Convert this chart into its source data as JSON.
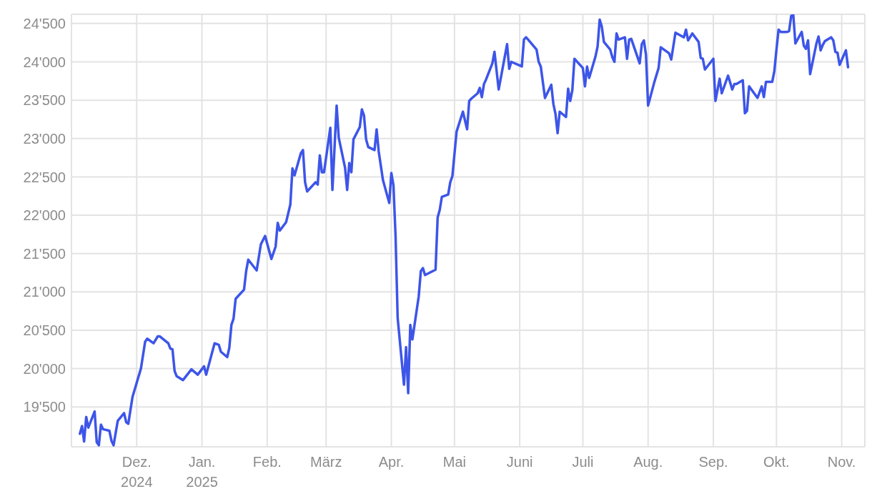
{
  "chart_data": {
    "type": "line",
    "xlim": [
      "2024-10-31",
      "2025-11-12"
    ],
    "ylim": [
      18980,
      24620
    ],
    "xticks": [
      {
        "value": "2024-12-01",
        "label": "Dez.\n2024"
      },
      {
        "value": "2025-01-01",
        "label": "Jan.\n2025"
      },
      {
        "value": "2025-02-01",
        "label": "Feb."
      },
      {
        "value": "2025-03-01",
        "label": "März"
      },
      {
        "value": "2025-04-01",
        "label": "Apr."
      },
      {
        "value": "2025-05-01",
        "label": "Mai"
      },
      {
        "value": "2025-06-01",
        "label": "Juni"
      },
      {
        "value": "2025-07-01",
        "label": "Juli"
      },
      {
        "value": "2025-08-01",
        "label": "Aug."
      },
      {
        "value": "2025-09-01",
        "label": "Sep."
      },
      {
        "value": "2025-10-01",
        "label": "Okt."
      },
      {
        "value": "2025-11-01",
        "label": "Nov."
      }
    ],
    "yticks": [
      {
        "value": 19500,
        "label": "19'500"
      },
      {
        "value": 20000,
        "label": "20'000"
      },
      {
        "value": 20500,
        "label": "20'500"
      },
      {
        "value": 21000,
        "label": "21'000"
      },
      {
        "value": 21500,
        "label": "21'500"
      },
      {
        "value": 22000,
        "label": "22'000"
      },
      {
        "value": 22500,
        "label": "22'500"
      },
      {
        "value": 23000,
        "label": "23'000"
      },
      {
        "value": 23500,
        "label": "23'500"
      },
      {
        "value": 24000,
        "label": "24'000"
      },
      {
        "value": 24500,
        "label": "24'500"
      }
    ],
    "grid": true,
    "legend": false,
    "marker": "none",
    "line_style": "solid",
    "x": [
      "2024-11-04",
      "2024-11-05",
      "2024-11-06",
      "2024-11-07",
      "2024-11-08",
      "2024-11-11",
      "2024-11-12",
      "2024-11-13",
      "2024-11-14",
      "2024-11-15",
      "2024-11-18",
      "2024-11-19",
      "2024-11-20",
      "2024-11-22",
      "2024-11-25",
      "2024-11-26",
      "2024-11-27",
      "2024-11-29",
      "2024-12-03",
      "2024-12-05",
      "2024-12-06",
      "2024-12-09",
      "2024-12-11",
      "2024-12-12",
      "2024-12-16",
      "2024-12-17",
      "2024-12-18",
      "2024-12-19",
      "2024-12-20",
      "2024-12-23",
      "2024-12-27",
      "2024-12-30",
      "2025-01-02",
      "2025-01-03",
      "2025-01-07",
      "2025-01-09",
      "2025-01-10",
      "2025-01-13",
      "2025-01-14",
      "2025-01-15",
      "2025-01-16",
      "2025-01-17",
      "2025-01-21",
      "2025-01-22",
      "2025-01-23",
      "2025-01-27",
      "2025-01-29",
      "2025-01-31",
      "2025-02-03",
      "2025-02-05",
      "2025-02-06",
      "2025-02-07",
      "2025-02-10",
      "2025-02-12",
      "2025-02-13",
      "2025-02-14",
      "2025-02-17",
      "2025-02-18",
      "2025-02-19",
      "2025-02-20",
      "2025-02-24",
      "2025-02-25",
      "2025-02-26",
      "2025-02-27",
      "2025-02-28",
      "2025-03-03",
      "2025-03-04",
      "2025-03-06",
      "2025-03-07",
      "2025-03-10",
      "2025-03-11",
      "2025-03-12",
      "2025-03-13",
      "2025-03-14",
      "2025-03-17",
      "2025-03-18",
      "2025-03-19",
      "2025-03-20",
      "2025-03-21",
      "2025-03-24",
      "2025-03-25",
      "2025-03-26",
      "2025-03-28",
      "2025-03-31",
      "2025-04-01",
      "2025-04-02",
      "2025-04-03",
      "2025-04-04",
      "2025-04-07",
      "2025-04-08",
      "2025-04-09",
      "2025-04-10",
      "2025-04-11",
      "2025-04-14",
      "2025-04-15",
      "2025-04-16",
      "2025-04-17",
      "2025-04-22",
      "2025-04-23",
      "2025-04-24",
      "2025-04-25",
      "2025-04-28",
      "2025-04-29",
      "2025-04-30",
      "2025-05-02",
      "2025-05-05",
      "2025-05-07",
      "2025-05-08",
      "2025-05-09",
      "2025-05-12",
      "2025-05-13",
      "2025-05-14",
      "2025-05-15",
      "2025-05-16",
      "2025-05-19",
      "2025-05-20",
      "2025-05-22",
      "2025-05-26",
      "2025-05-27",
      "2025-05-28",
      "2025-06-02",
      "2025-06-03",
      "2025-06-04",
      "2025-06-05",
      "2025-06-09",
      "2025-06-10",
      "2025-06-11",
      "2025-06-13",
      "2025-06-16",
      "2025-06-17",
      "2025-06-18",
      "2025-06-19",
      "2025-06-20",
      "2025-06-23",
      "2025-06-24",
      "2025-06-25",
      "2025-06-26",
      "2025-06-27",
      "2025-07-01",
      "2025-07-02",
      "2025-07-03",
      "2025-07-04",
      "2025-07-07",
      "2025-07-08",
      "2025-07-09",
      "2025-07-10",
      "2025-07-11",
      "2025-07-14",
      "2025-07-15",
      "2025-07-16",
      "2025-07-17",
      "2025-07-18",
      "2025-07-21",
      "2025-07-22",
      "2025-07-23",
      "2025-07-24",
      "2025-07-28",
      "2025-07-29",
      "2025-07-30",
      "2025-07-31",
      "2025-08-01",
      "2025-08-04",
      "2025-08-06",
      "2025-08-07",
      "2025-08-11",
      "2025-08-12",
      "2025-08-14",
      "2025-08-18",
      "2025-08-19",
      "2025-08-20",
      "2025-08-22",
      "2025-08-25",
      "2025-08-26",
      "2025-08-27",
      "2025-08-28",
      "2025-09-01",
      "2025-09-02",
      "2025-09-04",
      "2025-09-05",
      "2025-09-08",
      "2025-09-10",
      "2025-09-11",
      "2025-09-12",
      "2025-09-15",
      "2025-09-16",
      "2025-09-17",
      "2025-09-18",
      "2025-09-22",
      "2025-09-24",
      "2025-09-25",
      "2025-09-26",
      "2025-09-29",
      "2025-09-30",
      "2025-10-01",
      "2025-10-02",
      "2025-10-03",
      "2025-10-06",
      "2025-10-07",
      "2025-10-08",
      "2025-10-09",
      "2025-10-10",
      "2025-10-13",
      "2025-10-14",
      "2025-10-15",
      "2025-10-16",
      "2025-10-17",
      "2025-10-20",
      "2025-10-21",
      "2025-10-22",
      "2025-10-23",
      "2025-10-24",
      "2025-10-27",
      "2025-10-28",
      "2025-10-29",
      "2025-10-30",
      "2025-10-31",
      "2025-11-03",
      "2025-11-04"
    ],
    "series": [
      {
        "color": "#3d55e8",
        "values": [
          19150,
          19250,
          19050,
          19370,
          19230,
          19440,
          19040,
          19000,
          19270,
          19210,
          19190,
          19060,
          19000,
          19320,
          19420,
          19300,
          19280,
          19630,
          20000,
          20350,
          20390,
          20330,
          20420,
          20420,
          20330,
          20260,
          20250,
          19970,
          19900,
          19850,
          19990,
          19920,
          20030,
          19920,
          20330,
          20310,
          20220,
          20150,
          20270,
          20570,
          20650,
          20910,
          21030,
          21270,
          21420,
          21280,
          21620,
          21730,
          21430,
          21590,
          21900,
          21800,
          21910,
          22140,
          22610,
          22520,
          22810,
          22850,
          22430,
          22310,
          22430,
          22400,
          22780,
          22560,
          22560,
          23140,
          22330,
          23430,
          23010,
          22620,
          22330,
          22680,
          22560,
          22990,
          23150,
          23380,
          23300,
          22990,
          22890,
          22850,
          23120,
          22830,
          22460,
          22160,
          22550,
          22390,
          21730,
          20660,
          19790,
          20280,
          19680,
          20570,
          20380,
          20940,
          21270,
          21310,
          21220,
          21290,
          21970,
          22070,
          22240,
          22270,
          22430,
          22510,
          23090,
          23350,
          23120,
          23490,
          23520,
          23590,
          23660,
          23540,
          23710,
          23770,
          23980,
          24130,
          23640,
          24230,
          23910,
          24000,
          23940,
          24290,
          24320,
          24290,
          24160,
          24000,
          23940,
          23530,
          23700,
          23450,
          23320,
          23070,
          23350,
          23280,
          23650,
          23490,
          23630,
          24040,
          23920,
          23680,
          23940,
          23790,
          24070,
          24200,
          24550,
          24460,
          24260,
          24160,
          24060,
          24000,
          24370,
          24290,
          24320,
          24040,
          24290,
          24300,
          23980,
          24230,
          24280,
          24090,
          23430,
          23740,
          23920,
          24190,
          24110,
          24030,
          24380,
          24320,
          24420,
          24280,
          24370,
          24260,
          24050,
          24040,
          23900,
          24040,
          23490,
          23780,
          23590,
          23820,
          23640,
          23710,
          23710,
          23760,
          23330,
          23360,
          23680,
          23530,
          23680,
          23540,
          23740,
          23740,
          23880,
          24160,
          24420,
          24390,
          24390,
          24400,
          24600,
          24610,
          24240,
          24390,
          24210,
          24170,
          24280,
          23840,
          24240,
          24330,
          24150,
          24220,
          24270,
          24320,
          24280,
          24130,
          24120,
          23960,
          24150,
          23930
        ]
      }
    ]
  }
}
